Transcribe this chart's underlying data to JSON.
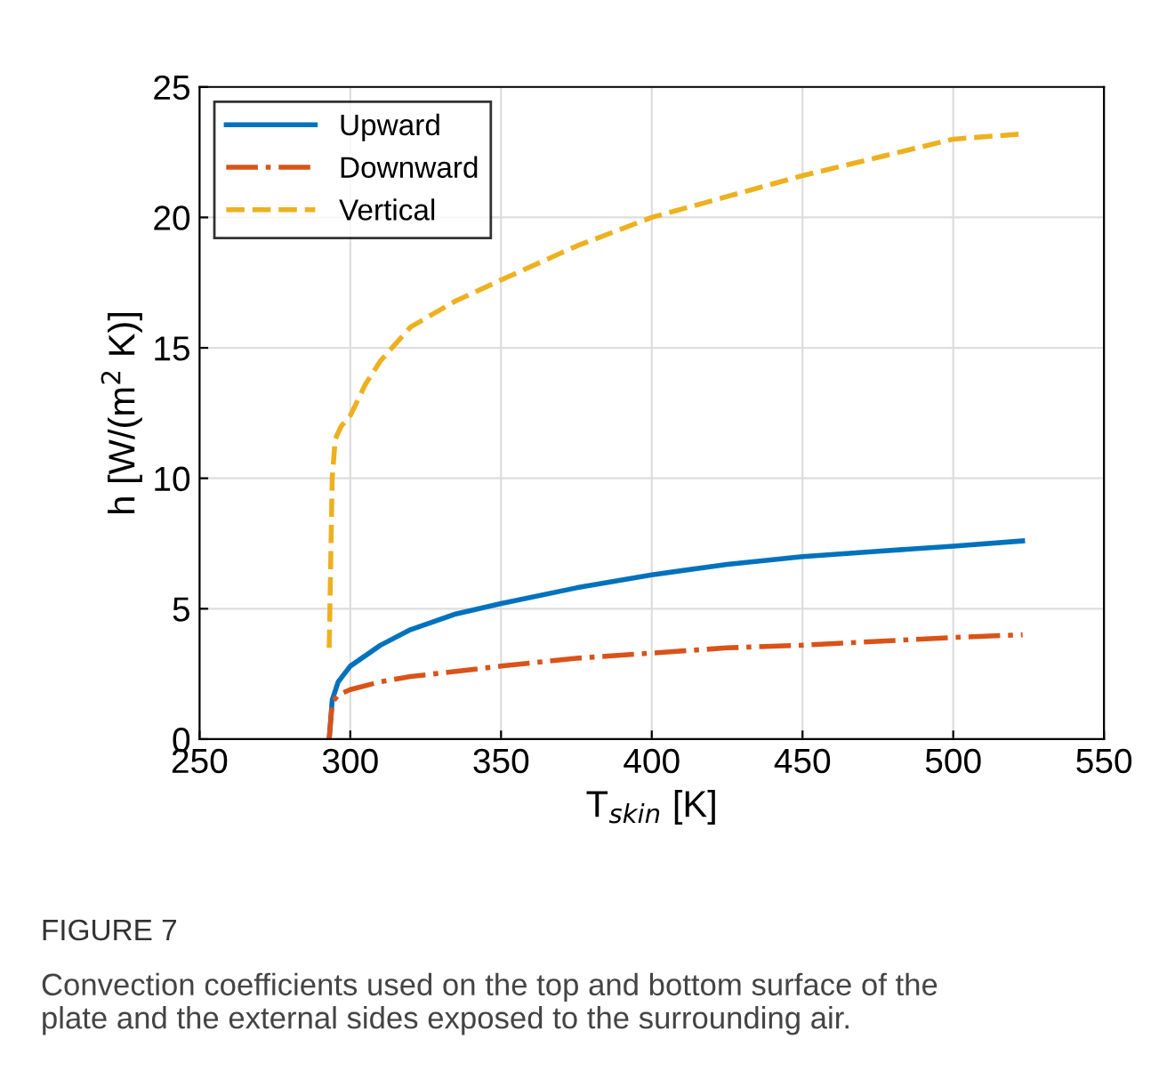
{
  "chart_data": {
    "type": "line",
    "xlabel": "T$_{skin}$ [K]",
    "ylabel": "h [W/(m$^{2}$ K)]",
    "xlim": [
      250,
      550
    ],
    "xticks": [
      250,
      300,
      350,
      400,
      450,
      500,
      550
    ],
    "ylim": [
      0,
      25
    ],
    "yticks": [
      0,
      5,
      10,
      15,
      20,
      25
    ],
    "grid": true,
    "legend": "top left",
    "series": [
      {
        "name": "Upward",
        "color": "#0072bd",
        "line_style": "solid",
        "x": [
          293,
          294,
          296,
          300,
          310,
          320,
          335,
          350,
          375,
          400,
          425,
          450,
          475,
          500,
          523
        ],
        "values": [
          0,
          1.5,
          2.2,
          2.8,
          3.6,
          4.2,
          4.8,
          5.2,
          5.8,
          6.3,
          6.7,
          7.0,
          7.2,
          7.4,
          7.6
        ]
      },
      {
        "name": "Downward",
        "color": "#d95319",
        "line_style": "dashdot",
        "x": [
          293,
          294,
          296,
          300,
          310,
          320,
          335,
          350,
          375,
          400,
          425,
          450,
          475,
          500,
          523
        ],
        "values": [
          0,
          1.4,
          1.7,
          1.9,
          2.2,
          2.4,
          2.6,
          2.8,
          3.1,
          3.3,
          3.5,
          3.6,
          3.75,
          3.9,
          4.0
        ]
      },
      {
        "name": "Vertical",
        "color": "#edb120",
        "line_style": "dashed",
        "x": [
          293,
          294,
          295,
          297,
          300,
          305,
          310,
          320,
          335,
          350,
          375,
          400,
          425,
          450,
          475,
          500,
          523
        ],
        "values": [
          3.5,
          10,
          11.5,
          12.0,
          12.4,
          13.6,
          14.5,
          15.8,
          16.8,
          17.6,
          18.9,
          20,
          20.8,
          21.6,
          22.3,
          23.0,
          23.2
        ]
      }
    ],
    "annotations": [
      "FIGURE 7",
      "Convection coefficients used on the top and bottom surface of the plate and the external sides exposed to the surrounding air."
    ]
  }
}
